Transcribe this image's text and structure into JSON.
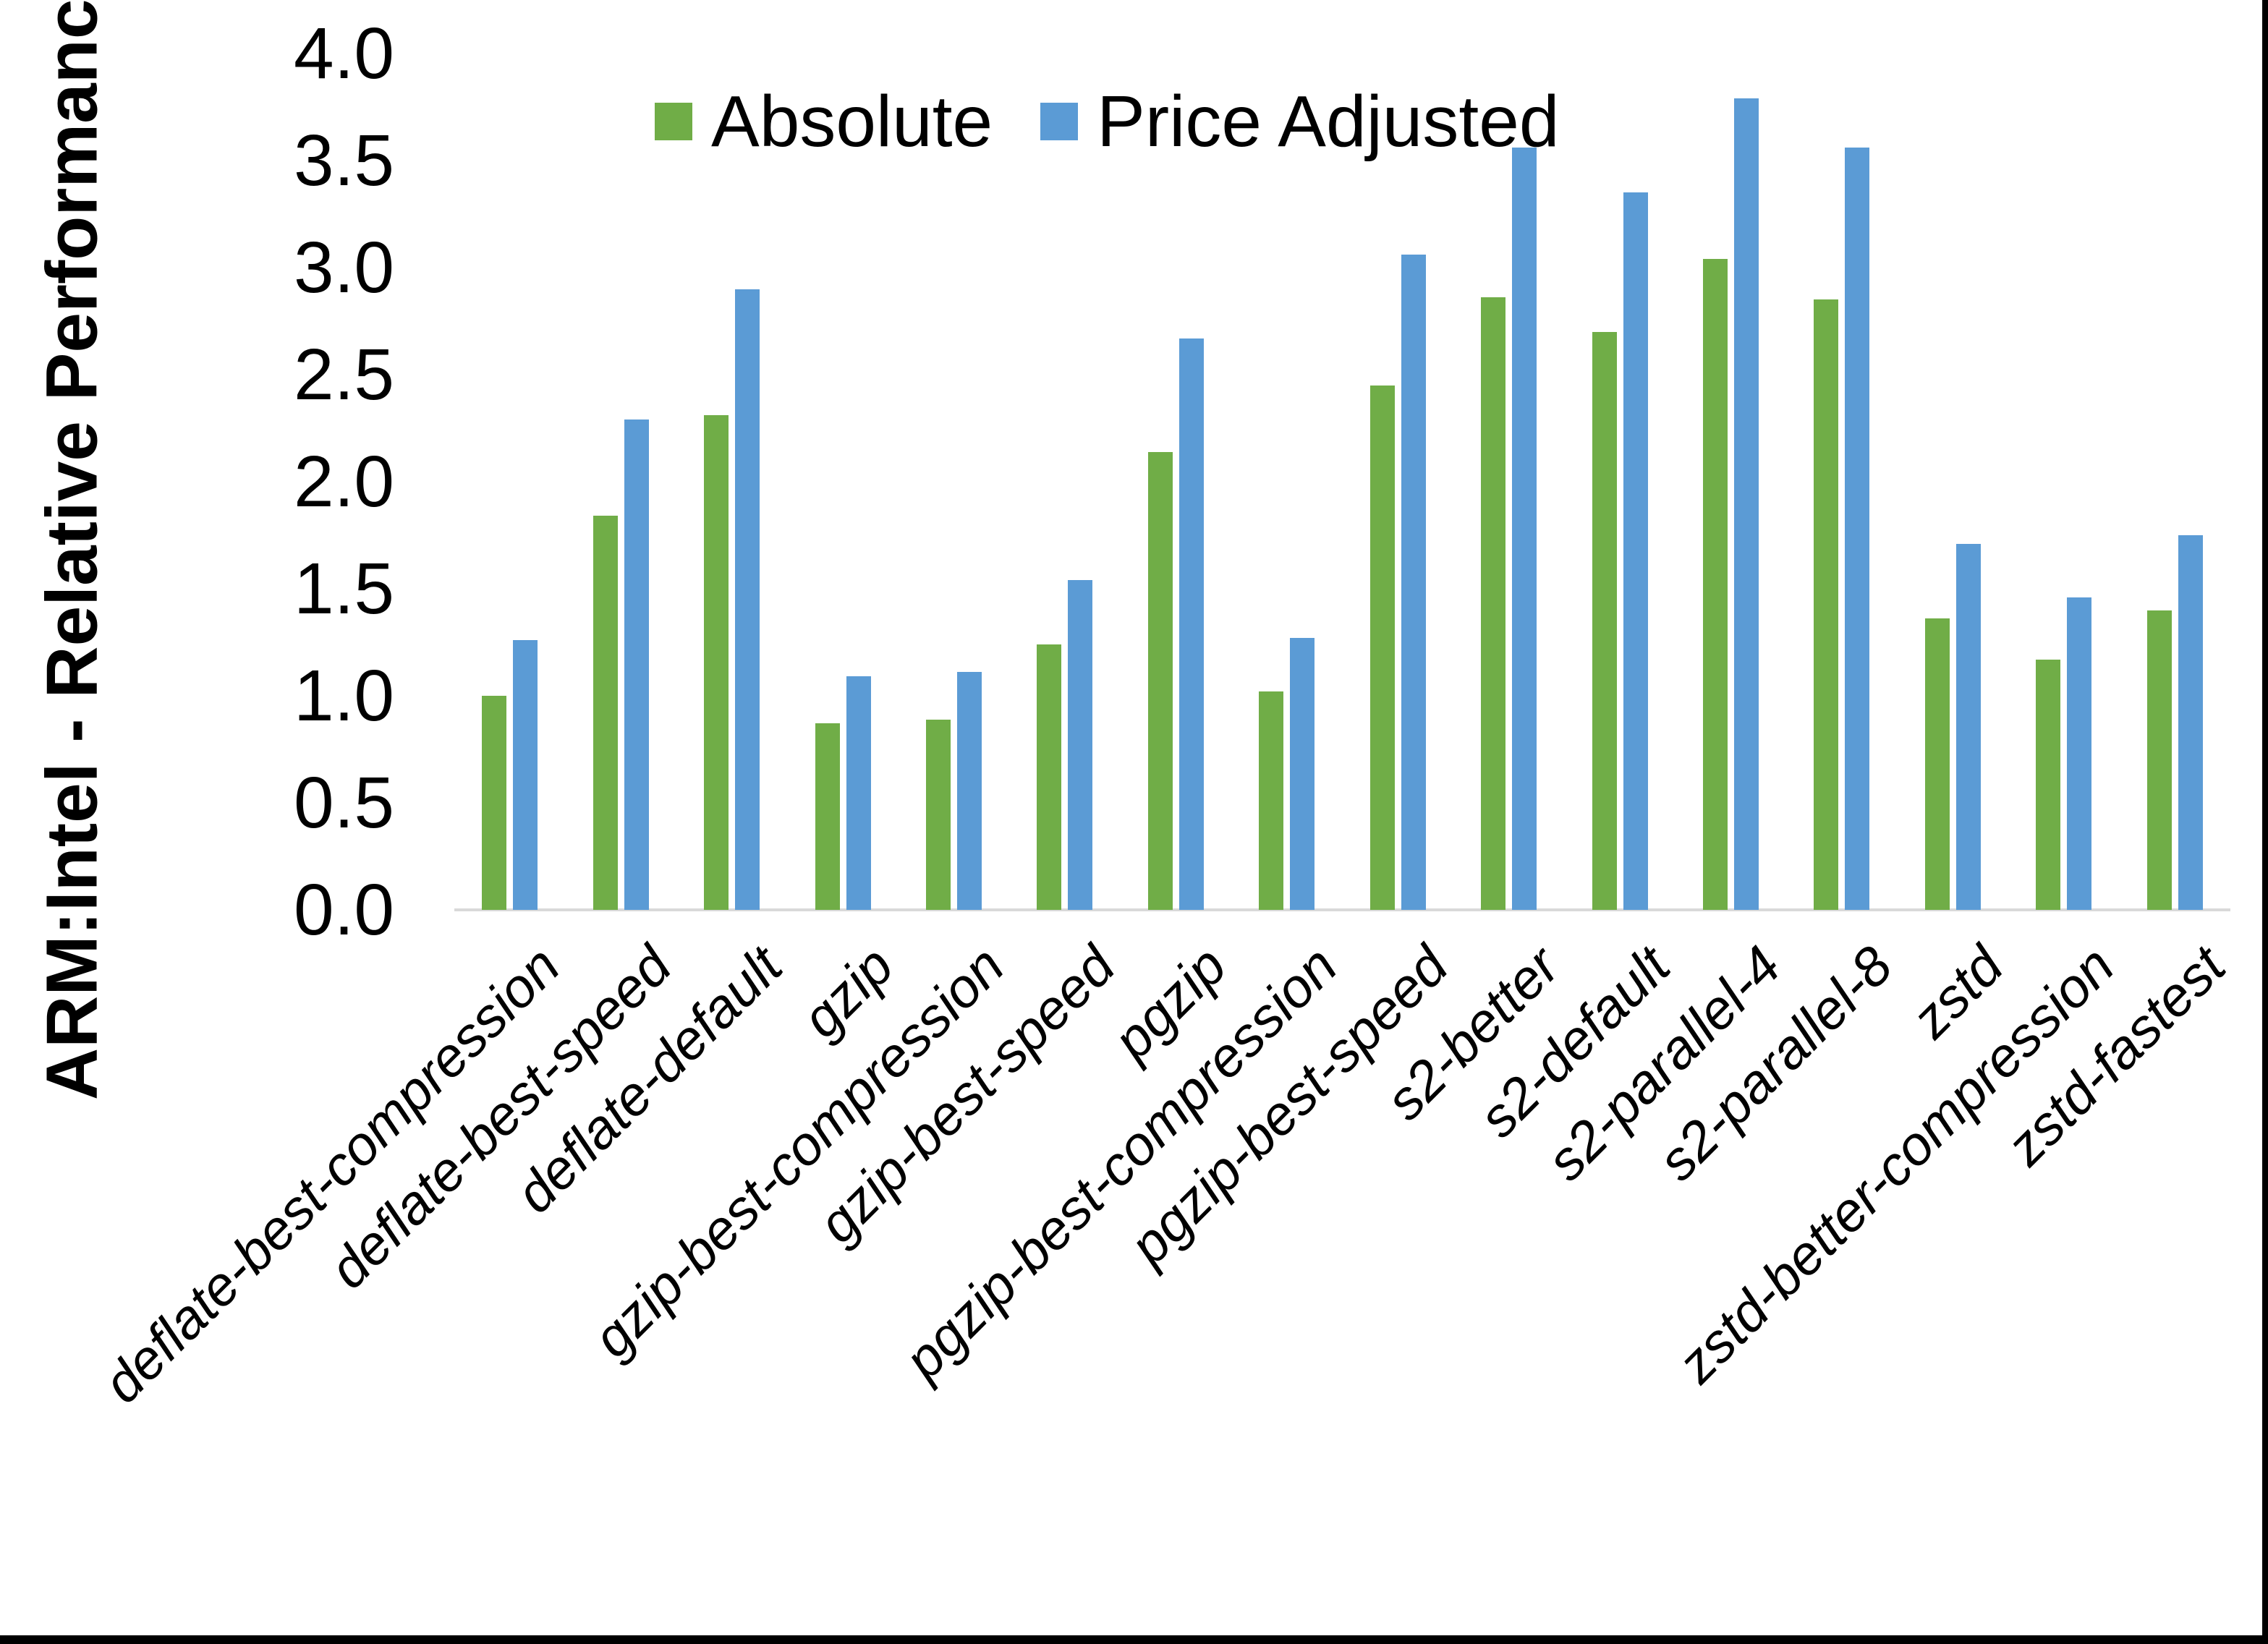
{
  "figure": {
    "ylabel": "ARM:Intel - Relative Performance"
  },
  "legend": {
    "position": "top-center"
  },
  "chart_data": {
    "type": "bar",
    "title": "",
    "xlabel": "",
    "ylabel": "ARM:Intel - Relative Performance",
    "ylim": [
      0.0,
      4.0
    ],
    "ytick_step": 0.5,
    "yticks": [
      "0.0",
      "0.5",
      "1.0",
      "1.5",
      "2.0",
      "2.5",
      "3.0",
      "3.5",
      "4.0"
    ],
    "grid": false,
    "legend_position": "top-center",
    "categories": [
      "deflate-best-compression",
      "deflate-best-speed",
      "deflate-default",
      "gzip",
      "gzip-best-compression",
      "gzip-best-speed",
      "pgzip",
      "pgzip-best-compression",
      "pgzip-best-speed",
      "s2-better",
      "s2-default",
      "s2-parallel-4",
      "s2-parallel-8",
      "zstd",
      "zstd-better-compression",
      "zstd-fastest"
    ],
    "series": [
      {
        "name": "Absolute",
        "color": "#70AD47",
        "values": [
          1.0,
          1.84,
          2.31,
          0.87,
          0.89,
          1.24,
          2.14,
          1.02,
          2.45,
          2.86,
          2.7,
          3.04,
          2.85,
          1.36,
          1.17,
          1.4
        ]
      },
      {
        "name": "Price Adjusted",
        "color": "#5B9BD5",
        "values": [
          1.26,
          2.29,
          2.9,
          1.09,
          1.11,
          1.54,
          2.67,
          1.27,
          3.06,
          3.56,
          3.35,
          3.79,
          3.56,
          1.71,
          1.46,
          1.75
        ]
      }
    ],
    "colors": {
      "axis_line": "#d9d9d9",
      "text": "#000000",
      "background": "#ffffff",
      "frame": "#000000"
    }
  }
}
